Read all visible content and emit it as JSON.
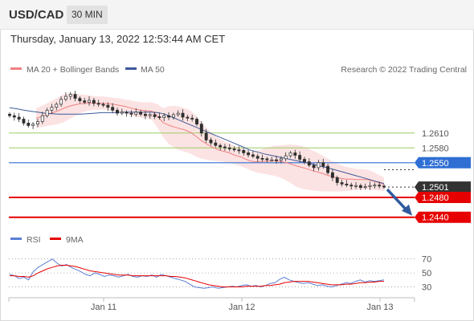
{
  "header": {
    "symbol": "USD/CAD",
    "interval": "30 MIN"
  },
  "datetime": "Thursday, January 13, 2022 12:53:44 AM CET",
  "colors": {
    "candle": "#2e2e2e",
    "bollinger_fill": "#fbdede",
    "ma20": "#f08080",
    "ma50": "#3d5a99",
    "resistance_fill": "#2f6fd4",
    "support_fill": "#e60000",
    "pivot_line": "#9ccc65",
    "last_price_fill": "#333333",
    "arrow": "#2f5a9e",
    "rsi": "#5b7fd6",
    "rsi_ma": "#e60000"
  },
  "chart_data": [
    {
      "type": "candlestick",
      "title": "",
      "legend": [
        {
          "label": "MA 20 + Bollinger Bands",
          "color": "#f08080"
        },
        {
          "label": "MA 50",
          "color": "#3d5a99"
        }
      ],
      "legend_placement": "top-left",
      "credit": "Research © 2022 Trading Central",
      "x_tick_labels": [
        "Jan 11",
        "Jan 12",
        "Jan 13"
      ],
      "ylim": [
        1.2425,
        1.271
      ],
      "levels": [
        {
          "label": "1.2610",
          "value": 1.261,
          "kind": "pivot"
        },
        {
          "label": "1.2580",
          "value": 1.258,
          "kind": "pivot"
        },
        {
          "label": "1.2550",
          "value": 1.255,
          "kind": "resistance"
        },
        {
          "label": "1.2501",
          "value": 1.2501,
          "kind": "last"
        },
        {
          "label": "1.2480",
          "value": 1.248,
          "kind": "support"
        },
        {
          "label": "1.2440",
          "value": 1.244,
          "kind": "support"
        }
      ],
      "close": [
        1.2645,
        1.2642,
        1.2638,
        1.263,
        1.2625,
        1.2628,
        1.2633,
        1.2645,
        1.2656,
        1.2662,
        1.2668,
        1.2678,
        1.2684,
        1.2688,
        1.268,
        1.2675,
        1.2672,
        1.2676,
        1.267,
        1.2668,
        1.2666,
        1.2662,
        1.2656,
        1.265,
        1.2652,
        1.265,
        1.2648,
        1.2652,
        1.2648,
        1.2645,
        1.2647,
        1.2643,
        1.2641,
        1.2645,
        1.2642,
        1.2647,
        1.265,
        1.2642,
        1.264,
        1.2638,
        1.2628,
        1.261,
        1.2596,
        1.259,
        1.2585,
        1.2582,
        1.258,
        1.2578,
        1.2576,
        1.2575,
        1.257,
        1.2566,
        1.2563,
        1.2559,
        1.2558,
        1.2556,
        1.2556,
        1.2555,
        1.2558,
        1.2564,
        1.257,
        1.2565,
        1.2557,
        1.2552,
        1.2545,
        1.254,
        1.255,
        1.2543,
        1.253,
        1.252,
        1.251,
        1.2507,
        1.2505,
        1.2503,
        1.2504,
        1.25,
        1.2502,
        1.2504,
        1.2505,
        1.2503,
        1.2501
      ],
      "ma20_upper": [
        1.266,
        1.2665,
        1.267,
        1.2676,
        1.2682,
        1.2688,
        1.269,
        1.269,
        1.2688,
        1.2687,
        1.2685,
        1.2684,
        1.2684,
        1.2683,
        1.2681,
        1.268,
        1.2678,
        1.2676,
        1.2674,
        1.2672,
        1.2672,
        1.2672,
        1.2668,
        1.266,
        1.2664,
        1.2665,
        1.2663,
        1.266,
        1.2655,
        1.2645,
        1.263,
        1.2618,
        1.2608,
        1.26,
        1.2594,
        1.2589,
        1.2584,
        1.258,
        1.2576,
        1.2572,
        1.2574,
        1.2578,
        1.2581,
        1.2584,
        1.2585,
        1.2586,
        1.2587,
        1.2586,
        1.2584,
        1.258,
        1.2575,
        1.257,
        1.2564,
        1.2557,
        1.2551,
        1.2546,
        1.2542,
        1.254,
        1.2538,
        1.2537,
        1.2536,
        1.2532,
        1.2526,
        1.252
      ],
      "ma20_lower": [
        1.262,
        1.2622,
        1.2624,
        1.2626,
        1.2628,
        1.2632,
        1.2638,
        1.2644,
        1.265,
        1.2654,
        1.2656,
        1.2657,
        1.2657,
        1.2656,
        1.2655,
        1.2653,
        1.265,
        1.2646,
        1.2643,
        1.2641,
        1.264,
        1.2636,
        1.262,
        1.2602,
        1.2588,
        1.258,
        1.2575,
        1.2572,
        1.2568,
        1.2562,
        1.2558,
        1.2556,
        1.2554,
        1.2553,
        1.2552,
        1.255,
        1.2547,
        1.2543,
        1.2539,
        1.2534,
        1.253,
        1.2528,
        1.2526,
        1.2524,
        1.2521,
        1.2516,
        1.251,
        1.2502,
        1.2498,
        1.2496,
        1.2494,
        1.2493,
        1.2492,
        1.2492,
        1.2492,
        1.2492,
        1.2493,
        1.2494,
        1.2495,
        1.2496,
        1.2496,
        1.2495,
        1.2494,
        1.2493
      ],
      "ma20": [
        1.264,
        1.2643,
        1.2647,
        1.2651,
        1.2655,
        1.266,
        1.2664,
        1.2667,
        1.2669,
        1.267,
        1.267,
        1.267,
        1.267,
        1.2669,
        1.2668,
        1.2666,
        1.2664,
        1.2661,
        1.2658,
        1.2656,
        1.2655,
        1.2654,
        1.2644,
        1.2631,
        1.2626,
        1.2622,
        1.2619,
        1.2616,
        1.2611,
        1.2603,
        1.2594,
        1.2587,
        1.2581,
        1.2576,
        1.2573,
        1.257,
        1.2565,
        1.2562,
        1.2557,
        1.2553,
        1.2552,
        1.2553,
        1.2553,
        1.2554,
        1.2553,
        1.2551,
        1.2548,
        1.2544,
        1.2541,
        1.2538,
        1.2534,
        1.2531,
        1.2528,
        1.2524,
        1.2521,
        1.2519,
        1.2517,
        1.2517,
        1.2516,
        1.2516,
        1.2516,
        1.2513,
        1.251,
        1.2506
      ],
      "ma50": [
        1.2661,
        1.2659,
        1.2656,
        1.2654,
        1.2652,
        1.265,
        1.2649,
        1.2648,
        1.2648,
        1.2648,
        1.2648,
        1.2649,
        1.265,
        1.2651,
        1.2651,
        1.2651,
        1.2652,
        1.2652,
        1.2652,
        1.2652,
        1.2652,
        1.2651,
        1.2648,
        1.2642,
        1.2636,
        1.263,
        1.2624,
        1.2618,
        1.2612,
        1.2606,
        1.26,
        1.2594,
        1.2588,
        1.2582,
        1.2576,
        1.2572,
        1.2568,
        1.2565,
        1.2562,
        1.2559,
        1.2556,
        1.2553,
        1.255,
        1.2547,
        1.2543,
        1.254,
        1.2536,
        1.2532,
        1.2528,
        1.2524,
        1.252,
        1.2516,
        1.2512,
        1.2508
      ],
      "projection_target": 1.244
    },
    {
      "type": "line",
      "title": "",
      "legend": [
        {
          "label": "RSI",
          "color": "#5b7fd6"
        },
        {
          "label": "9MA",
          "color": "#e60000"
        }
      ],
      "legend_placement": "top-left",
      "y_tick_labels": [
        "70",
        "50",
        "30"
      ],
      "ylim": [
        18,
        80
      ],
      "rsi": [
        48,
        46,
        42,
        44,
        40,
        52,
        58,
        62,
        66,
        70,
        64,
        60,
        62,
        58,
        55,
        52,
        48,
        46,
        50,
        48,
        45,
        47,
        46,
        44,
        46,
        48,
        45,
        44,
        46,
        45,
        47,
        44,
        48,
        46,
        44,
        42,
        40,
        38,
        34,
        30,
        29,
        28,
        29,
        30,
        28,
        29,
        30,
        31,
        30,
        32,
        33,
        31,
        32,
        30,
        32,
        35,
        36,
        41,
        44,
        40,
        38,
        36,
        35,
        36,
        34,
        32,
        33,
        31,
        30,
        32,
        34,
        36,
        35,
        38,
        40,
        37,
        39,
        38,
        39,
        40
      ],
      "rsi_ma": [
        46,
        46,
        45,
        45,
        44,
        46,
        50,
        53,
        56,
        58,
        60,
        61,
        61,
        60,
        59,
        57,
        55,
        53,
        52,
        51,
        50,
        49,
        48,
        47,
        47,
        47,
        46,
        46,
        46,
        46,
        46,
        46,
        46,
        46,
        45,
        45,
        44,
        43,
        41,
        39,
        37,
        35,
        33,
        32,
        31,
        30,
        30,
        30,
        30,
        30,
        31,
        31,
        31,
        31,
        32,
        32,
        33,
        34,
        36,
        37,
        38,
        38,
        38,
        38,
        37,
        36,
        35,
        34,
        33,
        33,
        33,
        34,
        34,
        35,
        36,
        36,
        37,
        37,
        38,
        38
      ]
    }
  ]
}
